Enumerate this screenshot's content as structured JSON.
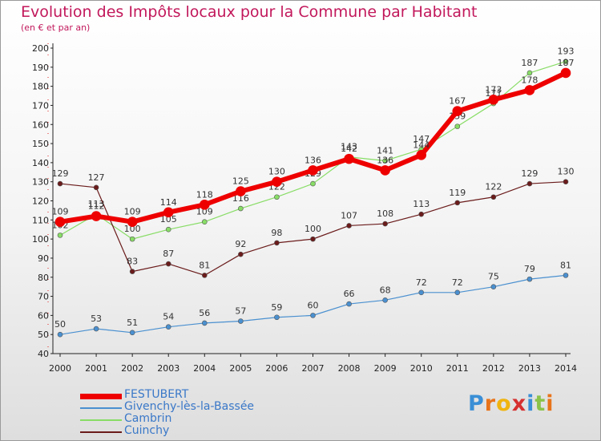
{
  "title": "Evolution des Impôts locaux pour la Commune par Habitant",
  "subtitle": "(en € et par an)",
  "brand": {
    "text": "Proxiti",
    "letters": [
      "P",
      "r",
      "o",
      "x",
      "i",
      "t",
      "i"
    ],
    "colors": [
      "#3a8fd6",
      "#e8731a",
      "#f0b40f",
      "#d63030",
      "#3a8fd6",
      "#8bc34a",
      "#e8731a"
    ]
  },
  "chart_data": {
    "type": "line",
    "x": [
      "2000",
      "2001",
      "2002",
      "2003",
      "2004",
      "2005",
      "2006",
      "2007",
      "2008",
      "2009",
      "2010",
      "2011",
      "2012",
      "2013",
      "2014"
    ],
    "ylim": [
      40,
      200
    ],
    "yticks": [
      40,
      50,
      60,
      70,
      80,
      90,
      100,
      110,
      120,
      130,
      140,
      150,
      160,
      170,
      180,
      190,
      200
    ],
    "grid": false,
    "legend_position": "bottom-left",
    "series": [
      {
        "name": "Givenchy-lès-la-Bassée",
        "color": "#4a90d0",
        "width": 1.2,
        "marker_r": 3,
        "values": [
          50,
          53,
          51,
          54,
          56,
          57,
          59,
          60,
          66,
          68,
          72,
          72,
          75,
          79,
          81
        ],
        "labels": [
          "50",
          "53",
          "51",
          "54",
          "56",
          "57",
          "59",
          "60",
          "66",
          "68",
          "72",
          "72",
          "75",
          "79",
          "81"
        ]
      },
      {
        "name": "Cambrin",
        "color": "#88dd66",
        "width": 1.2,
        "marker_r": 3,
        "values": [
          102,
          113,
          100,
          105,
          109,
          116,
          122,
          129,
          143,
          141,
          147,
          159,
          171,
          187,
          193
        ],
        "labels": [
          "102",
          "113",
          "100",
          "105",
          "109",
          "116",
          "122",
          "129",
          "143",
          "141",
          "147",
          "159",
          "171",
          "187",
          "193"
        ]
      },
      {
        "name": "Cuinchy",
        "color": "#6b1b1b",
        "width": 1.2,
        "marker_r": 3,
        "values": [
          129,
          127,
          83,
          87,
          81,
          92,
          98,
          100,
          107,
          108,
          113,
          119,
          122,
          129,
          130
        ],
        "labels": [
          "129",
          "127",
          "83",
          "87",
          "81",
          "92",
          "98",
          "100",
          "107",
          "108",
          "113",
          "119",
          "122",
          "129",
          "130"
        ]
      },
      {
        "name": "FESTUBERT",
        "color": "#ee0000",
        "width": 6,
        "marker_r": 6,
        "values": [
          109,
          112,
          109,
          114,
          118,
          125,
          130,
          136,
          142,
          136,
          144,
          167,
          173,
          178,
          187
        ],
        "labels": [
          "109",
          "112",
          "109",
          "114",
          "118",
          "125",
          "130",
          "136",
          "142",
          "136",
          "144",
          "167",
          "173",
          "178",
          "187"
        ]
      }
    ]
  },
  "legend": [
    {
      "name": "FESTUBERT",
      "color": "#ee0000",
      "thickness": 7
    },
    {
      "name": "Givenchy-lès-la-Bassée",
      "color": "#4a90d0",
      "thickness": 2
    },
    {
      "name": "Cambrin",
      "color": "#88dd66",
      "thickness": 2
    },
    {
      "name": "Cuinchy",
      "color": "#6b1b1b",
      "thickness": 2
    }
  ]
}
